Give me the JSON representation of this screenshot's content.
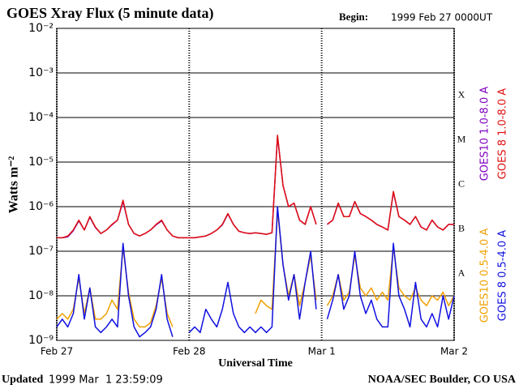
{
  "chart_data": {
    "type": "line",
    "title": "GOES Xray Flux (5 minute data)",
    "begin_label": "Begin:",
    "begin_time": "1999 Feb 27 0000UT",
    "xlabel": "Universal Time",
    "ylabel": "Watts m⁻²",
    "updated_label": "Updated",
    "updated_time": "1999 Mar  1 23:59:09",
    "credit": "NOAA/SEC Boulder, CO USA",
    "log_scale": true,
    "grid": true,
    "xlim": [
      0,
      72
    ],
    "xticks": [
      {
        "value": 0,
        "label": "Feb 27"
      },
      {
        "value": 24,
        "label": "Feb 28"
      },
      {
        "value": 48,
        "label": "Mar 1"
      },
      {
        "value": 72,
        "label": "Mar 2"
      }
    ],
    "ylim": [
      1e-09,
      0.01
    ],
    "yticks": [
      {
        "value": 1e-09,
        "label": "10⁻⁹"
      },
      {
        "value": 1e-08,
        "label": "10⁻⁸"
      },
      {
        "value": 1e-07,
        "label": "10⁻⁷"
      },
      {
        "value": 1e-06,
        "label": "10⁻⁶"
      },
      {
        "value": 1e-05,
        "label": "10⁻⁵"
      },
      {
        "value": 0.0001,
        "label": "10⁻⁴"
      },
      {
        "value": 0.001,
        "label": "10⁻³"
      },
      {
        "value": 0.01,
        "label": "10⁻²"
      }
    ],
    "class_thresholds": [
      {
        "value": 0.0001,
        "label": "X"
      },
      {
        "value": 1e-05,
        "label": "M"
      },
      {
        "value": 1e-06,
        "label": "C"
      },
      {
        "value": 1e-07,
        "label": "B"
      },
      {
        "value": 1e-08,
        "label": "A"
      }
    ],
    "x": [
      0,
      1,
      2,
      3,
      4,
      5,
      6,
      7,
      8,
      9,
      10,
      11,
      12,
      13,
      14,
      15,
      16,
      17,
      18,
      19,
      20,
      21,
      22,
      23,
      24,
      25,
      26,
      27,
      28,
      29,
      30,
      31,
      32,
      33,
      34,
      35,
      36,
      37,
      38,
      39,
      40,
      41,
      42,
      43,
      44,
      45,
      46,
      47,
      48,
      49,
      50,
      51,
      52,
      53,
      54,
      55,
      56,
      57,
      58,
      59,
      60,
      61,
      62,
      63,
      64,
      65,
      66,
      67,
      68,
      69,
      70,
      71,
      72
    ],
    "series": [
      {
        "name": "GOES10 1.0-8.0 A",
        "color": "#8000c0",
        "values": [
          2e-07,
          2e-07,
          2.1e-07,
          2.9e-07,
          4.8e-07,
          3e-07,
          5.8e-07,
          3.4e-07,
          2.5e-07,
          3e-07,
          3.9e-07,
          5e-07,
          1.3e-06,
          4e-07,
          2.5e-07,
          2.2e-07,
          2.5e-07,
          3e-07,
          3.9e-07,
          4.8e-07,
          3e-07,
          2.2e-07,
          2e-07,
          2e-07,
          2e-07,
          2e-07,
          2.1e-07,
          2.2e-07,
          2.5e-07,
          3e-07,
          3.9e-07,
          6.8e-07,
          4e-07,
          2.8e-07,
          2.6e-07,
          2.5e-07,
          2.6e-07,
          2.5e-07,
          2.4e-07,
          2.6e-07,
          3.8e-05,
          3e-06,
          1e-06,
          1.2e-06,
          5e-07,
          4e-07,
          1e-06,
          4e-07,
          null,
          4e-07,
          5e-07,
          1.2e-06,
          6e-07,
          6e-07,
          1.3e-06,
          7e-07,
          6e-07,
          5e-07,
          4e-07,
          3.5e-07,
          3e-07,
          2.1e-06,
          6e-07,
          5e-07,
          4e-07,
          6e-07,
          3.5e-07,
          3e-07,
          5e-07,
          3.5e-07,
          3e-07,
          4e-07,
          4e-07
        ]
      },
      {
        "name": "GOES 8 1.0-8.0 A",
        "color": "#e01010",
        "values": [
          2e-07,
          2e-07,
          2.2e-07,
          3e-07,
          5e-07,
          3e-07,
          6e-07,
          3.5e-07,
          2.5e-07,
          3e-07,
          4e-07,
          5e-07,
          1.4e-06,
          4e-07,
          2.5e-07,
          2.2e-07,
          2.5e-07,
          3e-07,
          4e-07,
          5e-07,
          3e-07,
          2.2e-07,
          2e-07,
          2e-07,
          2e-07,
          2e-07,
          2.1e-07,
          2.2e-07,
          2.5e-07,
          3e-07,
          4e-07,
          7e-07,
          4e-07,
          2.8e-07,
          2.6e-07,
          2.5e-07,
          2.6e-07,
          2.5e-07,
          2.4e-07,
          2.6e-07,
          4e-05,
          3e-06,
          1e-06,
          1.2e-06,
          5e-07,
          4e-07,
          1e-06,
          4e-07,
          null,
          4e-07,
          5e-07,
          1.2e-06,
          6e-07,
          6e-07,
          1.3e-06,
          7e-07,
          6e-07,
          5e-07,
          4e-07,
          3.5e-07,
          3e-07,
          2.2e-06,
          6e-07,
          5e-07,
          4e-07,
          6e-07,
          3.5e-07,
          3e-07,
          5e-07,
          3.5e-07,
          3e-07,
          4e-07,
          4e-07
        ]
      },
      {
        "name": "GOES10 0.5-4.0 A",
        "color": "#f0a000",
        "values": [
          3e-09,
          4e-09,
          3e-09,
          5e-09,
          2.5e-08,
          4e-09,
          1.5e-08,
          3e-09,
          3e-09,
          4e-09,
          8e-09,
          5e-09,
          1.2e-07,
          1.2e-08,
          3e-09,
          2e-09,
          2e-09,
          2.5e-09,
          6e-09,
          2.5e-08,
          4e-09,
          2e-09,
          null,
          null,
          null,
          null,
          null,
          null,
          null,
          null,
          null,
          null,
          null,
          null,
          null,
          null,
          4e-09,
          8e-09,
          6e-09,
          5e-09,
          8e-07,
          5e-08,
          1e-08,
          3e-08,
          6e-09,
          2e-08,
          8e-08,
          8e-09,
          null,
          6e-09,
          1e-08,
          3e-08,
          8e-09,
          1.2e-08,
          8e-08,
          1.5e-08,
          1e-08,
          1.5e-08,
          8e-09,
          1.2e-08,
          8e-09,
          1.2e-07,
          1.5e-08,
          1e-08,
          8e-09,
          1.5e-08,
          8e-09,
          6e-09,
          1e-08,
          8e-09,
          1.2e-08,
          6e-09,
          1e-08
        ]
      },
      {
        "name": "GOES 8 0.5-4.0 A",
        "color": "#1010e0",
        "values": [
          2e-09,
          3e-09,
          2e-09,
          4e-09,
          3e-08,
          3e-09,
          1.5e-08,
          2e-09,
          1.5e-09,
          2e-09,
          3e-09,
          2e-09,
          1.5e-07,
          1e-08,
          2e-09,
          1.2e-09,
          1.5e-09,
          2e-09,
          5e-09,
          3e-08,
          3e-09,
          1.2e-09,
          null,
          null,
          1.5e-09,
          2e-09,
          1.5e-09,
          5e-09,
          3e-09,
          2e-09,
          5e-09,
          2e-08,
          4e-09,
          2e-09,
          1.5e-09,
          2e-09,
          1.5e-09,
          2e-09,
          1.5e-09,
          2e-09,
          1e-06,
          5e-08,
          8e-09,
          3e-08,
          3e-09,
          2e-08,
          1e-07,
          5e-09,
          null,
          3e-09,
          8e-09,
          3e-08,
          5e-09,
          1e-08,
          1e-07,
          1e-08,
          4e-09,
          8e-09,
          3e-09,
          2e-09,
          2e-09,
          1.5e-07,
          1e-08,
          5e-09,
          2e-09,
          2e-08,
          3e-09,
          2e-09,
          4e-09,
          2e-09,
          1e-08,
          3e-09,
          1e-08
        ]
      }
    ]
  }
}
